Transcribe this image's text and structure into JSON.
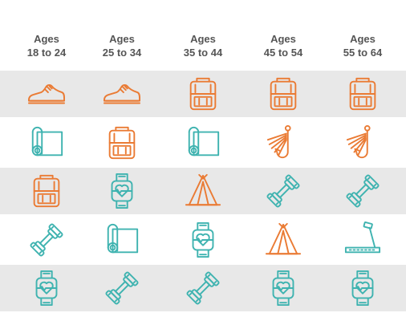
{
  "colors": {
    "orange": "#ea7b34",
    "teal": "#3fb3b0",
    "header_text": "#555555",
    "band": "#e8e8e8"
  },
  "columns": [
    {
      "line1": "Ages",
      "line2": "18 to 24"
    },
    {
      "line1": "Ages",
      "line2": "25 to 34"
    },
    {
      "line1": "Ages",
      "line2": "35 to 44"
    },
    {
      "line1": "Ages",
      "line2": "45 to 54"
    },
    {
      "line1": "Ages",
      "line2": "55 to 64"
    }
  ],
  "rows": [
    {
      "shaded": true,
      "items": [
        {
          "icon": "sneaker",
          "color": "orange"
        },
        {
          "icon": "sneaker",
          "color": "orange"
        },
        {
          "icon": "backpack",
          "color": "orange"
        },
        {
          "icon": "backpack",
          "color": "orange"
        },
        {
          "icon": "backpack",
          "color": "orange"
        }
      ]
    },
    {
      "shaded": false,
      "items": [
        {
          "icon": "yoga-mat",
          "color": "teal"
        },
        {
          "icon": "backpack",
          "color": "orange"
        },
        {
          "icon": "yoga-mat",
          "color": "teal"
        },
        {
          "icon": "fishing-hook",
          "color": "orange"
        },
        {
          "icon": "fishing-hook",
          "color": "orange"
        }
      ]
    },
    {
      "shaded": true,
      "items": [
        {
          "icon": "backpack",
          "color": "orange"
        },
        {
          "icon": "fitness-watch",
          "color": "teal"
        },
        {
          "icon": "tent",
          "color": "orange"
        },
        {
          "icon": "dumbbell",
          "color": "teal"
        },
        {
          "icon": "dumbbell",
          "color": "teal"
        }
      ]
    },
    {
      "shaded": false,
      "items": [
        {
          "icon": "dumbbell",
          "color": "teal"
        },
        {
          "icon": "yoga-mat",
          "color": "teal"
        },
        {
          "icon": "fitness-watch",
          "color": "teal"
        },
        {
          "icon": "tent",
          "color": "orange"
        },
        {
          "icon": "treadmill",
          "color": "teal"
        }
      ]
    },
    {
      "shaded": true,
      "items": [
        {
          "icon": "fitness-watch",
          "color": "teal"
        },
        {
          "icon": "dumbbell",
          "color": "teal"
        },
        {
          "icon": "dumbbell",
          "color": "teal"
        },
        {
          "icon": "fitness-watch",
          "color": "teal"
        },
        {
          "icon": "fitness-watch",
          "color": "teal"
        }
      ]
    }
  ]
}
